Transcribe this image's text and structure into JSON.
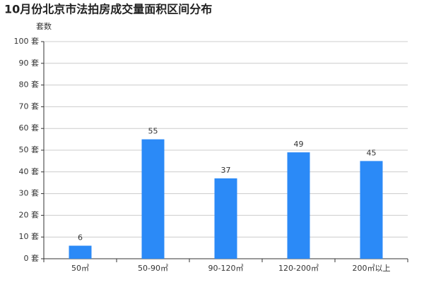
{
  "chart_data": {
    "type": "bar",
    "title": "10月份北京市法拍房成交量面积区间分布",
    "y_label": "套数",
    "categories": [
      "50㎡",
      "50-90㎡",
      "90-120㎡",
      "120-200㎡",
      "200㎡以上"
    ],
    "values": [
      6,
      55,
      37,
      49,
      45
    ],
    "color": "#2b8af7",
    "ylim": [
      0,
      100
    ],
    "yticks": [
      {
        "value": 0,
        "label": "0 套"
      },
      {
        "value": 10,
        "label": "10 套"
      },
      {
        "value": 20,
        "label": "20 套"
      },
      {
        "value": 30,
        "label": "30 套"
      },
      {
        "value": 40,
        "label": "40 套"
      },
      {
        "value": 50,
        "label": "50 套"
      },
      {
        "value": 60,
        "label": "60 套"
      },
      {
        "value": 70,
        "label": "70 套"
      },
      {
        "value": 80,
        "label": "80 套"
      },
      {
        "value": 90,
        "label": "90 套"
      },
      {
        "value": 100,
        "label": "100 套"
      }
    ],
    "grid": true
  }
}
